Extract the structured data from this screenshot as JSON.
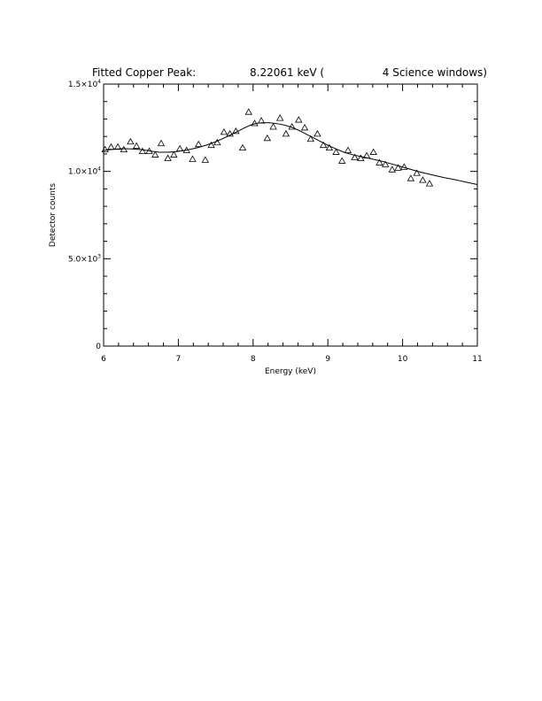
{
  "chart_data": {
    "type": "scatter",
    "title": {
      "label": "Fitted Copper Peak:",
      "value": "8.22061 keV (",
      "suffix": "4 Science windows)"
    },
    "xlabel": "Energy (keV)",
    "ylabel": "Detector counts",
    "xlim": [
      6,
      11
    ],
    "ylim": [
      0,
      15000
    ],
    "x_ticks": [
      {
        "value": 6,
        "label": "6"
      },
      {
        "value": 7,
        "label": "7"
      },
      {
        "value": 8,
        "label": "8"
      },
      {
        "value": 9,
        "label": "9"
      },
      {
        "value": 10,
        "label": "10"
      },
      {
        "value": 11,
        "label": "11"
      }
    ],
    "y_ticks": [
      {
        "value": 0,
        "mantissa": "0",
        "exponent": ""
      },
      {
        "value": 5000,
        "mantissa": "5.0×10",
        "exponent": "3"
      },
      {
        "value": 10000,
        "mantissa": "1.0×10",
        "exponent": "4"
      },
      {
        "value": 15000,
        "mantissa": "1.5×10",
        "exponent": "4"
      }
    ],
    "grid": false,
    "series": [
      {
        "type": "scatter",
        "marker": "triangle",
        "points": [
          [
            6.02,
            11250
          ],
          [
            6.1,
            11400
          ],
          [
            6.19,
            11400
          ],
          [
            6.27,
            11250
          ],
          [
            6.36,
            11700
          ],
          [
            6.44,
            11450
          ],
          [
            6.52,
            11150
          ],
          [
            6.61,
            11150
          ],
          [
            6.69,
            10950
          ],
          [
            6.77,
            11600
          ],
          [
            6.86,
            10750
          ],
          [
            6.94,
            10950
          ],
          [
            7.02,
            11300
          ],
          [
            7.11,
            11200
          ],
          [
            7.19,
            10700
          ],
          [
            7.27,
            11550
          ],
          [
            7.36,
            10650
          ],
          [
            7.44,
            11500
          ],
          [
            7.52,
            11650
          ],
          [
            7.61,
            12250
          ],
          [
            7.69,
            12150
          ],
          [
            7.77,
            12300
          ],
          [
            7.86,
            11350
          ],
          [
            7.94,
            13400
          ],
          [
            8.02,
            12750
          ],
          [
            8.11,
            12900
          ],
          [
            8.19,
            11900
          ],
          [
            8.27,
            12550
          ],
          [
            8.36,
            13050
          ],
          [
            8.44,
            12150
          ],
          [
            8.52,
            12550
          ],
          [
            8.61,
            12950
          ],
          [
            8.69,
            12500
          ],
          [
            8.77,
            11850
          ],
          [
            8.86,
            12150
          ],
          [
            8.94,
            11500
          ],
          [
            9.02,
            11350
          ],
          [
            9.11,
            11100
          ],
          [
            9.19,
            10600
          ],
          [
            9.27,
            11200
          ],
          [
            9.36,
            10800
          ],
          [
            9.44,
            10750
          ],
          [
            9.52,
            10900
          ],
          [
            9.61,
            11100
          ],
          [
            9.69,
            10500
          ],
          [
            9.77,
            10400
          ],
          [
            9.86,
            10100
          ],
          [
            9.94,
            10200
          ],
          [
            10.02,
            10250
          ],
          [
            10.11,
            9600
          ],
          [
            10.19,
            9900
          ],
          [
            10.27,
            9500
          ],
          [
            10.36,
            9300
          ]
        ]
      },
      {
        "type": "line",
        "points": [
          [
            6.0,
            11200
          ],
          [
            6.25,
            11300
          ],
          [
            6.5,
            11250
          ],
          [
            6.75,
            11100
          ],
          [
            7.0,
            11150
          ],
          [
            7.25,
            11350
          ],
          [
            7.5,
            11700
          ],
          [
            7.75,
            12200
          ],
          [
            8.0,
            12700
          ],
          [
            8.22,
            12780
          ],
          [
            8.5,
            12550
          ],
          [
            8.75,
            12050
          ],
          [
            9.0,
            11500
          ],
          [
            9.25,
            11050
          ],
          [
            9.5,
            10800
          ],
          [
            9.75,
            10550
          ],
          [
            10.0,
            10250
          ],
          [
            10.25,
            9950
          ],
          [
            10.5,
            9700
          ],
          [
            10.75,
            9480
          ],
          [
            11.0,
            9250
          ]
        ]
      }
    ]
  }
}
